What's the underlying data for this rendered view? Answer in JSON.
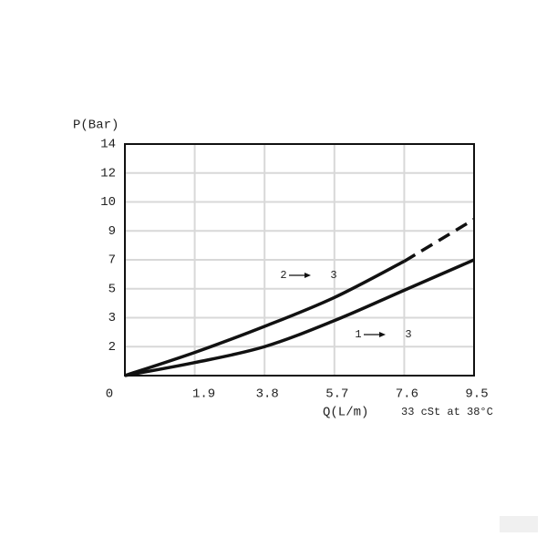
{
  "chart_data": {
    "type": "line",
    "y_label": "P(Bar)",
    "x_label": "Q(L/m)",
    "note": "33 cSt at 38°C",
    "x": [
      0,
      1.9,
      3.8,
      5.7,
      7.6,
      9.5
    ],
    "series": [
      {
        "color": "#111111",
        "style": "solid",
        "values": [
          0,
          1.6,
          2.7,
          4.4,
          6.9,
          null
        ]
      },
      {
        "color": "#111111",
        "style": "dashed",
        "values": [
          null,
          null,
          null,
          null,
          6.9,
          9.4
        ]
      },
      {
        "color": "#111111",
        "style": "solid",
        "values": [
          0,
          0.9,
          2.0,
          2.9,
          4.9,
          7
        ]
      }
    ],
    "annotations": [
      "2",
      "3",
      "1",
      "3"
    ],
    "xlim": [
      0,
      9.5
    ],
    "xticks": [
      0,
      1.9,
      3.8,
      5.7,
      7.6,
      9.5
    ],
    "ylim": [
      0,
      14
    ],
    "yticks": [
      2,
      3,
      5,
      7,
      9,
      10,
      12,
      14
    ],
    "yscale": "tick-spaced",
    "grid": true
  }
}
